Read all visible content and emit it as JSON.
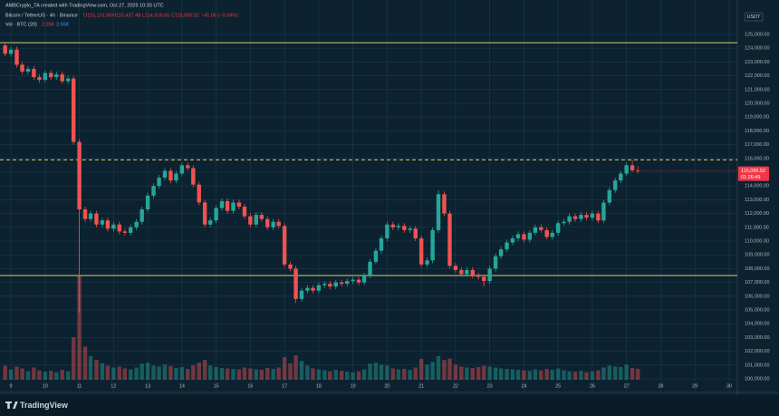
{
  "header": {
    "attribution": "AMBCrypto_TA created with TradingView.com, Oct 27, 2025 10:33 UTC",
    "symbol": "Bitcoin / TetherUS · 4h · Binance",
    "ohlc": [
      "O115,131.58",
      "H115,437.48",
      "L114,916.65",
      "C115,090.52",
      "−41.06 (−0.04%)"
    ],
    "volume_label": "Vol · BTC (20)",
    "volume_values": [
      "2.35K",
      "2.65K"
    ]
  },
  "chart_data": {
    "type": "candlestick",
    "currency": "USDT",
    "x": [
      8.83,
      9,
      9.17,
      9.33,
      9.5,
      9.67,
      9.83,
      10,
      10.17,
      10.33,
      10.5,
      10.67,
      10.83,
      11,
      11.17,
      11.33,
      11.5,
      11.67,
      11.83,
      12,
      12.17,
      12.33,
      12.5,
      12.67,
      12.83,
      13,
      13.17,
      13.33,
      13.5,
      13.67,
      13.83,
      14,
      14.17,
      14.33,
      14.5,
      14.67,
      14.83,
      15,
      15.17,
      15.33,
      15.5,
      15.67,
      15.83,
      16,
      16.17,
      16.33,
      16.5,
      16.67,
      16.83,
      17,
      17.17,
      17.33,
      17.5,
      17.67,
      17.83,
      18,
      18.17,
      18.33,
      18.5,
      18.67,
      18.83,
      19,
      19.17,
      19.33,
      19.5,
      19.67,
      19.83,
      20,
      20.17,
      20.33,
      20.5,
      20.67,
      20.83,
      21,
      21.17,
      21.33,
      21.5,
      21.67,
      21.83,
      22,
      22.17,
      22.33,
      22.5,
      22.67,
      22.83,
      23,
      23.17,
      23.33,
      23.5,
      23.67,
      23.83,
      24,
      24.17,
      24.33,
      24.5,
      24.67,
      24.83,
      25,
      25.17,
      25.33,
      25.5,
      25.67,
      25.83,
      26,
      26.17,
      26.33,
      26.5,
      26.67,
      26.83,
      27,
      27.17,
      27.33
    ],
    "open": [
      124200,
      123600,
      123900,
      122800,
      122300,
      122500,
      121900,
      121700,
      122200,
      121900,
      122100,
      121600,
      121800,
      117200,
      112300,
      111600,
      112000,
      111200,
      111500,
      110900,
      111200,
      110700,
      110600,
      111000,
      111400,
      112300,
      113300,
      114000,
      114600,
      115100,
      114400,
      114900,
      115500,
      115300,
      114100,
      112800,
      111200,
      111500,
      112400,
      112900,
      112200,
      112800,
      112500,
      111800,
      111200,
      111900,
      111600,
      111000,
      111400,
      111100,
      108300,
      108000,
      105800,
      106400,
      106600,
      106400,
      106800,
      106900,
      106700,
      107000,
      106900,
      107100,
      107200,
      107000,
      107500,
      108500,
      109300,
      110200,
      111200,
      111000,
      111100,
      110800,
      110900,
      110200,
      108300,
      108600,
      110800,
      113400,
      112000,
      108200,
      107900,
      107600,
      107900,
      107500,
      107400,
      107100,
      108000,
      108900,
      109400,
      109900,
      110200,
      110500,
      110100,
      110600,
      111000,
      110800,
      110300,
      110600,
      111300,
      111400,
      111800,
      111600,
      111900,
      111700,
      112000,
      111500,
      112800,
      113700,
      114400,
      114900,
      115500,
      115131.58
    ],
    "high": [
      124400,
      124100,
      124100,
      123000,
      122700,
      122700,
      122100,
      122400,
      122400,
      122300,
      122300,
      122000,
      122000,
      117400,
      112500,
      112200,
      112200,
      111700,
      111700,
      111400,
      111400,
      110900,
      111200,
      111600,
      112500,
      113500,
      114200,
      114800,
      115300,
      115300,
      115100,
      115700,
      115700,
      115500,
      114300,
      113000,
      111700,
      112600,
      113100,
      113100,
      113000,
      113000,
      112700,
      112000,
      112100,
      112100,
      111800,
      111600,
      111600,
      111300,
      108500,
      108200,
      106600,
      106800,
      106800,
      107000,
      107100,
      107100,
      107200,
      107200,
      107300,
      107400,
      107400,
      107700,
      108700,
      109500,
      110400,
      111400,
      111400,
      111300,
      111300,
      111100,
      111100,
      110400,
      108800,
      111000,
      113700,
      113600,
      112200,
      108400,
      108100,
      108100,
      108100,
      107700,
      107600,
      108200,
      109100,
      109600,
      110100,
      110400,
      110700,
      110700,
      110800,
      111200,
      111200,
      111000,
      110800,
      111500,
      111600,
      112000,
      112000,
      112100,
      112100,
      112200,
      112200,
      113000,
      113900,
      114600,
      115100,
      115700,
      115900,
      115437.48
    ],
    "low": [
      123400,
      123400,
      122600,
      122100,
      122100,
      121700,
      121500,
      121500,
      121700,
      121700,
      121400,
      121400,
      117000,
      104800,
      111400,
      111400,
      111000,
      111000,
      110700,
      110700,
      110500,
      110400,
      110400,
      110800,
      111200,
      112100,
      113100,
      113800,
      114400,
      114200,
      114200,
      114700,
      115100,
      113900,
      112600,
      111000,
      111000,
      111300,
      112200,
      112000,
      112000,
      112300,
      111600,
      111000,
      111000,
      111400,
      110800,
      110800,
      110900,
      108100,
      107800,
      105500,
      105600,
      106200,
      106200,
      106200,
      106600,
      106500,
      106500,
      106700,
      106700,
      106900,
      106800,
      106800,
      107300,
      108300,
      109100,
      110000,
      110800,
      110800,
      110600,
      110600,
      110000,
      108100,
      108100,
      108400,
      110600,
      111800,
      108000,
      107700,
      107400,
      107400,
      107300,
      107200,
      106700,
      106900,
      107800,
      108700,
      109200,
      109700,
      110000,
      109900,
      109900,
      110400,
      110600,
      110100,
      110100,
      110400,
      111100,
      111200,
      111400,
      111400,
      111500,
      111500,
      111300,
      111300,
      112600,
      113500,
      114200,
      114700,
      115000,
      114916.65
    ],
    "close": [
      123600,
      123900,
      122800,
      122300,
      122500,
      121900,
      121700,
      122200,
      121900,
      122100,
      121600,
      121800,
      117200,
      112300,
      111600,
      112000,
      111200,
      111500,
      110900,
      111200,
      110700,
      110600,
      111000,
      111400,
      112300,
      113300,
      114000,
      114600,
      115100,
      114400,
      114900,
      115500,
      115300,
      114100,
      112800,
      111200,
      111500,
      112400,
      112900,
      112200,
      112800,
      112500,
      111800,
      111200,
      111900,
      111600,
      111000,
      111400,
      111100,
      108300,
      108000,
      105800,
      106400,
      106600,
      106400,
      106800,
      106900,
      106700,
      107000,
      106900,
      107100,
      107200,
      107000,
      107500,
      108500,
      109300,
      110200,
      111200,
      111000,
      111100,
      110800,
      110900,
      110200,
      108300,
      108600,
      110800,
      113400,
      112000,
      108200,
      107900,
      107600,
      107900,
      107500,
      107400,
      107100,
      108000,
      108900,
      109400,
      109900,
      110200,
      110500,
      110100,
      110600,
      111000,
      110800,
      110300,
      110600,
      111300,
      111400,
      111800,
      111600,
      111900,
      111700,
      112000,
      111500,
      112800,
      113700,
      114400,
      114900,
      115500,
      115131.58,
      115090.52
    ],
    "volume": [
      3000,
      2200,
      2800,
      2400,
      1800,
      2600,
      2000,
      1700,
      1900,
      1600,
      2100,
      1800,
      9000,
      22000,
      7000,
      5000,
      4200,
      3500,
      3000,
      2600,
      2800,
      2400,
      2200,
      2600,
      3400,
      3600,
      3000,
      2800,
      3200,
      2900,
      2500,
      2700,
      2300,
      3100,
      3600,
      4200,
      3000,
      2700,
      2500,
      2400,
      2300,
      2200,
      2600,
      2400,
      2200,
      2100,
      2500,
      2300,
      2600,
      4800,
      3500,
      5200,
      4000,
      3000,
      2400,
      2200,
      2000,
      1800,
      2100,
      1900,
      1700,
      1600,
      1800,
      2200,
      3400,
      3600,
      3200,
      3000,
      2400,
      2200,
      2300,
      2100,
      2600,
      4400,
      3200,
      3800,
      5000,
      4200,
      4500,
      3200,
      2800,
      2600,
      2500,
      2700,
      3000,
      2800,
      2600,
      2400,
      2300,
      2200,
      2100,
      2000,
      1900,
      2200,
      2000,
      2300,
      2100,
      2400,
      2000,
      1800,
      1700,
      1900,
      1600,
      1800,
      2000,
      2600,
      3000,
      2800,
      2700,
      3200,
      2500,
      2350
    ],
    "volume_ylim": [
      0,
      25000
    ],
    "colors": {
      "up": "#26a69a",
      "down": "#ef5350"
    },
    "xlim": [
      8.68,
      30.24
    ],
    "xticks": [
      9,
      10,
      11,
      12,
      13,
      14,
      15,
      16,
      17,
      18,
      19,
      20,
      21,
      22,
      23,
      24,
      25,
      26,
      27,
      28,
      29,
      30
    ],
    "ylim": [
      99934,
      127500
    ],
    "yticks": [
      {
        "value": 100000,
        "label": "100,000.00"
      },
      {
        "value": 101000,
        "label": "101,000.00"
      },
      {
        "value": 102000,
        "label": "102,000.00"
      },
      {
        "value": 103000,
        "label": "103,000.00"
      },
      {
        "value": 104000,
        "label": "104,000.00"
      },
      {
        "value": 105000,
        "label": "105,000.00"
      },
      {
        "value": 106000,
        "label": "106,000.00"
      },
      {
        "value": 107000,
        "label": "107,000.00"
      },
      {
        "value": 108000,
        "label": "108,000.00"
      },
      {
        "value": 109000,
        "label": "109,000.00"
      },
      {
        "value": 110000,
        "label": "110,000.00"
      },
      {
        "value": 111000,
        "label": "111,000.00"
      },
      {
        "value": 112000,
        "label": "112,000.00"
      },
      {
        "value": 113000,
        "label": "113,000.00"
      },
      {
        "value": 114000,
        "label": "114,000.00"
      },
      {
        "value": 115000,
        "label": "115,000.00"
      },
      {
        "value": 116000,
        "label": "116,000.00"
      },
      {
        "value": 117000,
        "label": "117,000.00"
      },
      {
        "value": 118000,
        "label": "118,000.00"
      },
      {
        "value": 119000,
        "label": "119,000.00"
      },
      {
        "value": 120000,
        "label": "120,000.00"
      },
      {
        "value": 121000,
        "label": "121,000.00"
      },
      {
        "value": 122000,
        "label": "122,000.00"
      },
      {
        "value": 123000,
        "label": "123,000.00"
      },
      {
        "value": 124000,
        "label": "124,000.00"
      },
      {
        "value": 125000,
        "label": "125,000.00"
      }
    ],
    "grid": true,
    "levels": [
      {
        "value": 124400,
        "color": "#d9cf6a",
        "dashed": false
      },
      {
        "value": 115900,
        "color": "#d9cf6a",
        "dashed": true
      },
      {
        "value": 107500,
        "color": "#d9cf6a",
        "dashed": false
      }
    ],
    "last_price": {
      "label": "115,090.52",
      "countdown": "01:26:49",
      "color": "#f23645"
    }
  },
  "footer": {
    "brand": "TradingView"
  }
}
